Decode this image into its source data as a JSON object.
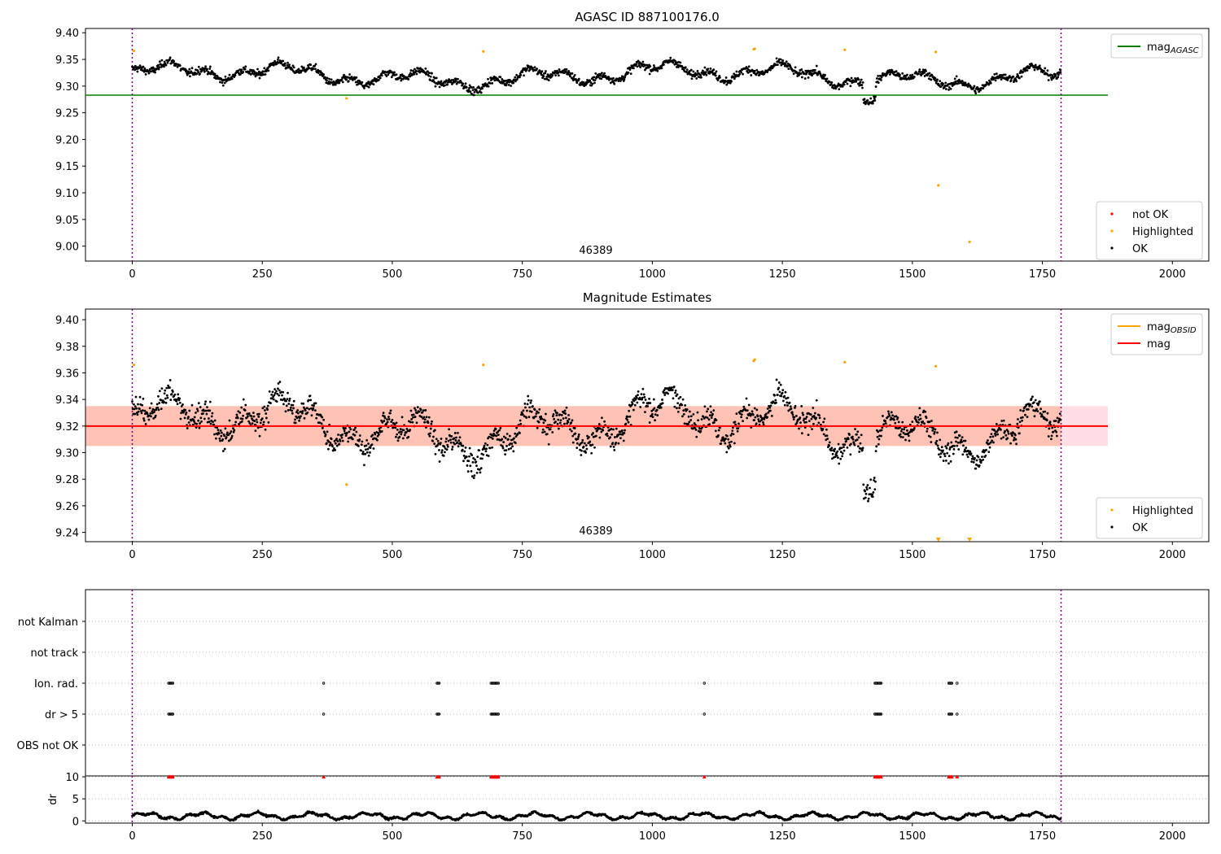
{
  "chart_data": [
    {
      "type": "scatter",
      "title": "AGASC ID 887100176.0",
      "xlabel": "",
      "ylabel": "",
      "xlim": [
        -90,
        2070
      ],
      "ylim": [
        8.972,
        9.408
      ],
      "x_ticks": [
        "0",
        "250",
        "500",
        "750",
        "1000",
        "1250",
        "1500",
        "1750",
        "2000"
      ],
      "y_ticks": [
        "9.00",
        "9.05",
        "9.10",
        "9.15",
        "9.20",
        "9.25",
        "9.30",
        "9.35",
        "9.40"
      ],
      "annotation": {
        "text": "46389",
        "x": 890,
        "y": 8.995
      },
      "vlines": [
        0,
        1786
      ],
      "hline": {
        "name": "mag",
        "sub": "AGASC",
        "y": 9.283,
        "x_range": [
          -90,
          1876
        ],
        "color": "#008000"
      },
      "legend_top": {
        "placement": "upper right",
        "entries": [
          {
            "label": "mag",
            "sub": "AGASC",
            "kind": "line",
            "color": "#008000"
          }
        ]
      },
      "legend_bottom": {
        "placement": "lower right",
        "entries": [
          {
            "label": "not OK",
            "kind": "dot",
            "color": "#ff0000"
          },
          {
            "label": "Highlighted",
            "kind": "dot",
            "color": "#ffa500"
          },
          {
            "label": "OK",
            "kind": "dot",
            "color": "#000000"
          }
        ]
      },
      "series": [
        {
          "name": "OK",
          "color": "#000000",
          "n_points": 1786,
          "x_range": [
            0,
            1786
          ],
          "mean": 9.32,
          "spread": 0.015
        },
        {
          "name": "Highlighted",
          "color": "#ffa500",
          "points": [
            [
              3,
              9.366
            ],
            [
              412,
              9.277
            ],
            [
              675,
              9.365
            ],
            [
              1195,
              9.369
            ],
            [
              1197,
              9.37
            ],
            [
              1370,
              9.368
            ],
            [
              1545,
              9.364
            ],
            [
              1550,
              9.114
            ],
            [
              1610,
              9.008
            ]
          ]
        }
      ]
    },
    {
      "type": "scatter",
      "title": "Magnitude Estimates",
      "xlabel": "",
      "ylabel": "",
      "xlim": [
        -90,
        2070
      ],
      "ylim": [
        9.233,
        9.408
      ],
      "x_ticks": [
        "0",
        "250",
        "500",
        "750",
        "1000",
        "1250",
        "1500",
        "1750",
        "2000"
      ],
      "y_ticks": [
        "9.24",
        "9.26",
        "9.28",
        "9.30",
        "9.32",
        "9.34",
        "9.36",
        "9.38",
        "9.40"
      ],
      "annotation": {
        "text": "46389",
        "x": 890,
        "y": 9.239
      },
      "vlines": [
        0,
        1786
      ],
      "mag_line": {
        "name": "mag",
        "y": 9.32,
        "x_range": [
          -90,
          1876
        ],
        "color": "#ff0000"
      },
      "bands": [
        {
          "x_range": [
            -90,
            1876
          ],
          "y_range": [
            9.305,
            9.335
          ],
          "color": "#ffc0cb",
          "opacity": 0.5
        },
        {
          "x_range": [
            -90,
            1786
          ],
          "y_range": [
            9.305,
            9.335
          ],
          "color": "#ffa07a",
          "opacity": 0.45
        }
      ],
      "obsid_line": {
        "name": "mag",
        "sub": "OBSID",
        "color": "#ffa500"
      },
      "legend_top": {
        "placement": "upper right",
        "entries": [
          {
            "label": "mag",
            "sub": "OBSID",
            "kind": "line",
            "color": "#ffa500"
          },
          {
            "label": "mag",
            "sub": "",
            "kind": "line",
            "color": "#ff0000"
          }
        ]
      },
      "legend_bottom": {
        "placement": "lower right",
        "entries": [
          {
            "label": "Highlighted",
            "kind": "dot",
            "color": "#ffa500"
          },
          {
            "label": "OK",
            "kind": "dot",
            "color": "#000000"
          }
        ]
      },
      "series": [
        {
          "name": "OK",
          "color": "#000000",
          "n_points": 1786,
          "x_range": [
            0,
            1786
          ],
          "mean": 9.32,
          "spread": 0.015
        },
        {
          "name": "Highlighted",
          "color": "#ffa500",
          "points": [
            [
              3,
              9.366
            ],
            [
              412,
              9.276
            ],
            [
              675,
              9.366
            ],
            [
              1195,
              9.369
            ],
            [
              1197,
              9.37
            ],
            [
              1370,
              9.368
            ],
            [
              1545,
              9.365
            ]
          ]
        },
        {
          "name": "Highlighted (off-scale)",
          "color": "#ffa500",
          "markers": "triangle-down",
          "points": [
            [
              1550,
              9.233
            ],
            [
              1610,
              9.233
            ]
          ]
        }
      ]
    },
    {
      "type": "scatter",
      "title": "",
      "xlim": [
        -90,
        2070
      ],
      "vlines": [
        0,
        1786
      ],
      "categories": [
        "OBS not OK",
        "dr > 5",
        "Ion. rad.",
        "not track",
        "not Kalman"
      ],
      "flagged_x": [
        70,
        72,
        74,
        76,
        78,
        368,
        586,
        588,
        590,
        690,
        692,
        694,
        696,
        698,
        700,
        702,
        704,
        1100,
        1428,
        1430,
        1432,
        1434,
        1436,
        1438,
        1440,
        1570,
        1572,
        1574,
        1576,
        1586
      ],
      "flags": {
        "OBS not OK": false,
        "dr > 5": true,
        "Ion. rad.": true,
        "not track": false,
        "not Kalman": false
      }
    },
    {
      "type": "scatter",
      "title": "",
      "xlabel": "",
      "ylabel": "dr",
      "xlim": [
        -90,
        2070
      ],
      "ylim": [
        -0.5,
        10.2
      ],
      "x_ticks": [
        "0",
        "250",
        "500",
        "750",
        "1000",
        "1250",
        "1500",
        "1750",
        "2000"
      ],
      "y_ticks": [
        "0",
        "5",
        "10"
      ],
      "vlines": [
        0,
        1786
      ],
      "series": [
        {
          "name": "dr",
          "color": "#000000",
          "n_points": 1786,
          "x_range": [
            0,
            1786
          ],
          "range": [
            0.2,
            2.6
          ]
        },
        {
          "name": "dr > 5",
          "color": "#ff0000",
          "markers": "triangle-up",
          "y": 10
        }
      ]
    }
  ]
}
